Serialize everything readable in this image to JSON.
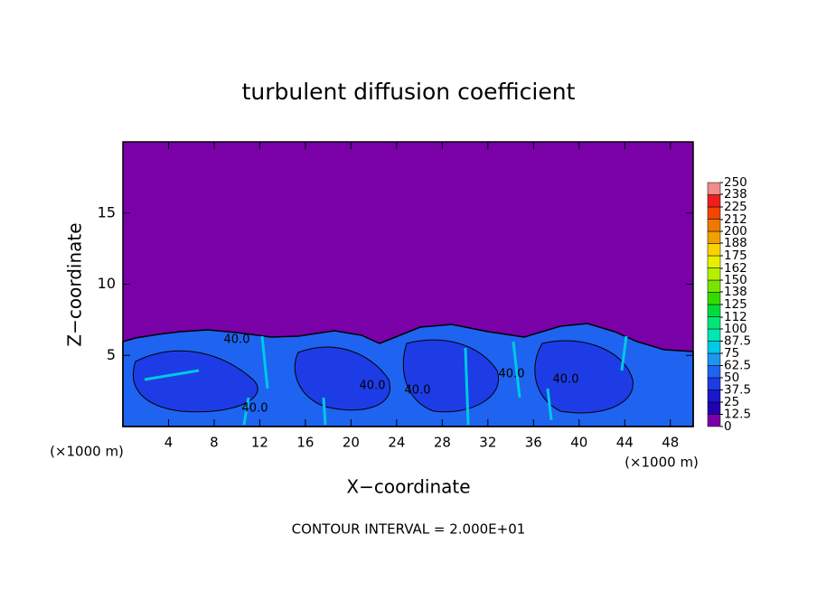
{
  "chart_data": {
    "type": "contour",
    "title": "turbulent diffusion coefficient",
    "xlabel": "X−coordinate",
    "ylabel": "Z−coordinate",
    "x_unit_label": "(×1000 m)",
    "footer": "CONTOUR INTERVAL = 2.000E+01",
    "xlim": [
      0,
      50
    ],
    "ylim": [
      0,
      20
    ],
    "xticks": [
      4,
      8,
      12,
      16,
      20,
      24,
      28,
      32,
      36,
      40,
      44,
      48
    ],
    "yticks": [
      5,
      10,
      15
    ],
    "contour_labels": [
      "40.0",
      "40.0",
      "40.0",
      "40.0",
      "40.0",
      "40.0"
    ],
    "colorbar": {
      "lim": [
        0,
        250
      ],
      "ticks": [
        0,
        12.5,
        25,
        37.5,
        50,
        62.5,
        75,
        87.5,
        100,
        112,
        125,
        138,
        150,
        162,
        175,
        188,
        200,
        212,
        225,
        238,
        250
      ],
      "colors": [
        "#7a00a8",
        "#2000b0",
        "#1a18cc",
        "#1e3ce6",
        "#1e64f0",
        "#1e96f0",
        "#00c8e6",
        "#00e6b4",
        "#00e678",
        "#00dc3c",
        "#32dc00",
        "#78e600",
        "#b4f000",
        "#e6f000",
        "#fad200",
        "#f0a000",
        "#f07800",
        "#f04600",
        "#f01e1e",
        "#f08c8c"
      ]
    }
  }
}
